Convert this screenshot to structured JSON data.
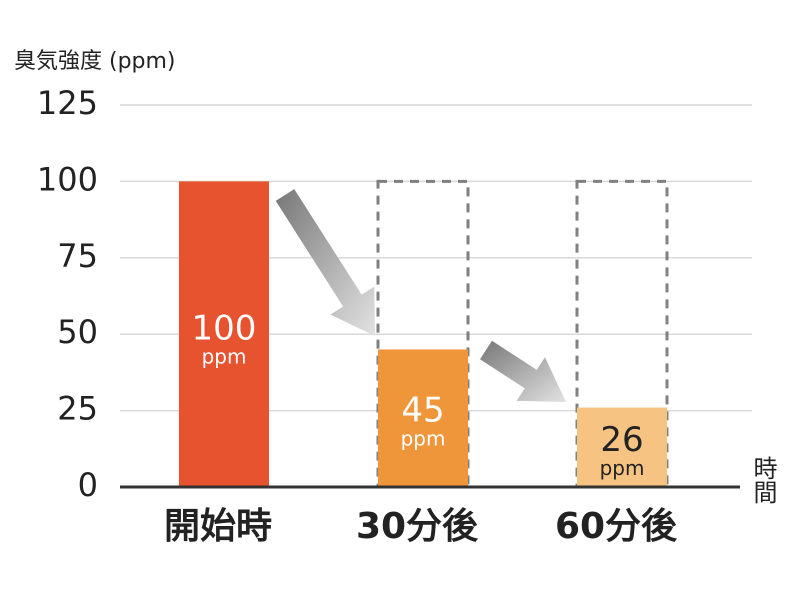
{
  "chart_data": {
    "type": "bar",
    "y_label": "臭気強度 (ppm)",
    "x_label": "時間",
    "categories": [
      "開始時",
      "30分後",
      "60分後"
    ],
    "values": [
      100,
      45,
      26
    ],
    "colors": [
      "#e8532f",
      "#f0963a",
      "#f7c383"
    ],
    "label_colors": [
      "#ffffff",
      "#ffffff",
      "#222222"
    ],
    "data_label_unit": "ppm",
    "reference": 100,
    "ylim": [
      0,
      125
    ],
    "yticks": [
      0,
      25,
      50,
      75,
      100,
      125
    ],
    "grid": true
  }
}
